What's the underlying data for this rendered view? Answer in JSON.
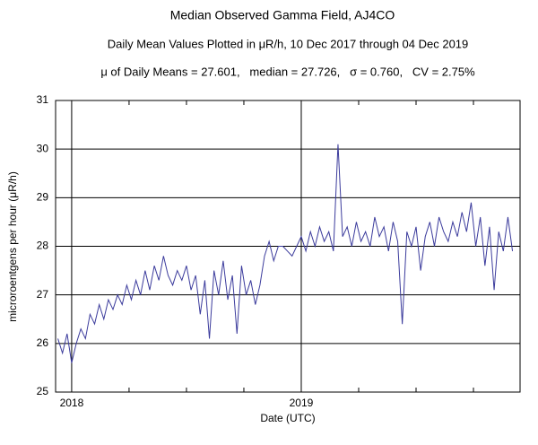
{
  "chart_data": {
    "type": "line",
    "title": "Median Observed Gamma Field, AJ4CO",
    "subtitle": "Daily Mean Values Plotted in μR/h, 10 Dec 2017 through 04 Dec 2019",
    "stats": "μ of Daily Means = 27.601,   median = 27.726,   σ = 0.760,   CV = 2.75%",
    "xlabel": "Date (UTC)",
    "ylabel": "microroentgens per hour (μR/h)",
    "xlim": [
      2017.93,
      2019.953
    ],
    "ylim": [
      25,
      31
    ],
    "xticks": [
      2018,
      2019
    ],
    "xminorticks": [
      2018.25,
      2018.5,
      2018.75,
      2019.25,
      2019.5,
      2019.75
    ],
    "yticks": [
      25,
      26,
      27,
      28,
      29,
      30,
      31
    ],
    "grid": true,
    "x": [
      2017.94,
      2017.96,
      2017.98,
      2018.0,
      2018.02,
      2018.04,
      2018.06,
      2018.08,
      2018.1,
      2018.12,
      2018.14,
      2018.16,
      2018.18,
      2018.2,
      2018.22,
      2018.24,
      2018.26,
      2018.28,
      2018.3,
      2018.32,
      2018.34,
      2018.36,
      2018.38,
      2018.4,
      2018.42,
      2018.44,
      2018.46,
      2018.48,
      2018.5,
      2018.52,
      2018.54,
      2018.56,
      2018.58,
      2018.6,
      2018.62,
      2018.64,
      2018.66,
      2018.68,
      2018.7,
      2018.72,
      2018.74,
      2018.76,
      2018.78,
      2018.8,
      2018.82,
      2018.84,
      2018.86,
      2018.88,
      2018.9,
      2018.92,
      2018.94,
      2018.96,
      2018.98,
      2019.0,
      2019.02,
      2019.04,
      2019.06,
      2019.08,
      2019.1,
      2019.12,
      2019.14,
      2019.16,
      2019.18,
      2019.2,
      2019.22,
      2019.24,
      2019.26,
      2019.28,
      2019.3,
      2019.32,
      2019.34,
      2019.36,
      2019.38,
      2019.4,
      2019.42,
      2019.44,
      2019.46,
      2019.48,
      2019.5,
      2019.52,
      2019.54,
      2019.56,
      2019.58,
      2019.6,
      2019.62,
      2019.64,
      2019.66,
      2019.68,
      2019.7,
      2019.72,
      2019.74,
      2019.76,
      2019.78,
      2019.8,
      2019.82,
      2019.84,
      2019.86,
      2019.88,
      2019.9,
      2019.92
    ],
    "series": [
      {
        "color": "#3b3b9c",
        "values": [
          26.1,
          25.8,
          26.2,
          25.6,
          26.0,
          26.3,
          26.1,
          26.6,
          26.4,
          26.8,
          26.5,
          26.9,
          26.7,
          27.0,
          26.8,
          27.2,
          26.9,
          27.3,
          27.0,
          27.5,
          27.1,
          27.6,
          27.3,
          27.8,
          27.4,
          27.2,
          27.5,
          27.3,
          27.6,
          27.1,
          27.4,
          26.6,
          27.3,
          26.1,
          27.5,
          27.0,
          27.7,
          26.9,
          27.4,
          26.2,
          27.6,
          27.0,
          27.3,
          26.8,
          27.2,
          27.8,
          28.1,
          27.7,
          28.0,
          28.0,
          27.9,
          27.8,
          28.0,
          28.2,
          27.9,
          28.3,
          28.0,
          28.4,
          28.1,
          28.3,
          27.9,
          30.1,
          28.2,
          28.4,
          28.0,
          28.5,
          28.1,
          28.3,
          28.0,
          28.6,
          28.2,
          28.4,
          27.9,
          28.5,
          28.1,
          26.4,
          28.3,
          28.0,
          28.4,
          27.5,
          28.2,
          28.5,
          28.0,
          28.6,
          28.3,
          28.1,
          28.5,
          28.2,
          28.7,
          28.3,
          28.9,
          28.0,
          28.6,
          27.6,
          28.4,
          27.1,
          28.3,
          27.9,
          28.6,
          27.9
        ]
      }
    ]
  }
}
